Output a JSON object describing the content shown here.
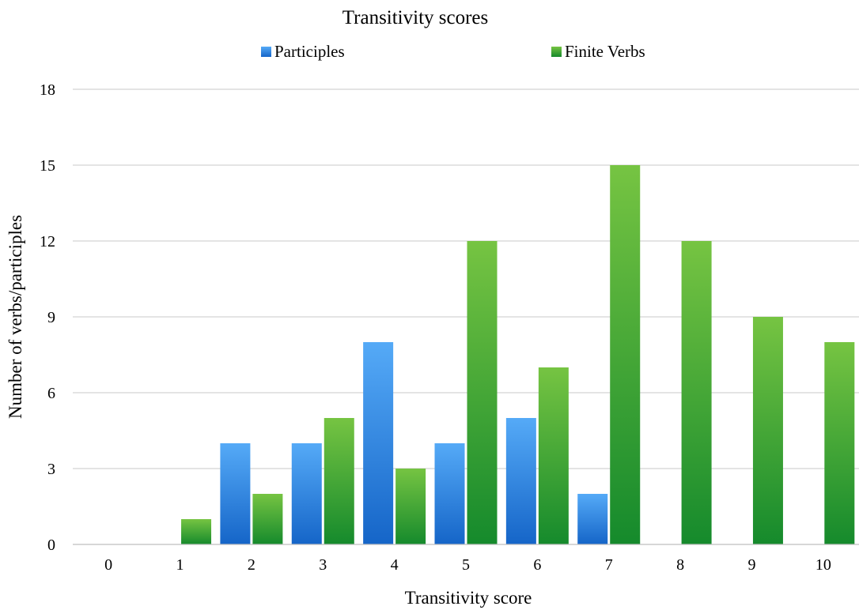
{
  "chart_data": {
    "type": "bar",
    "title": "Transitivity scores",
    "xlabel": "Transitivity score",
    "ylabel": "Number of verbs/participles",
    "categories": [
      "0",
      "1",
      "2",
      "3",
      "4",
      "5",
      "6",
      "7",
      "8",
      "9",
      "10"
    ],
    "ylim": [
      0,
      18
    ],
    "yticks": [
      "0",
      "3",
      "6",
      "9",
      "12",
      "15",
      "18"
    ],
    "grid": true,
    "legend_position": "top",
    "series": [
      {
        "name": "Participles",
        "values": [
          0,
          0,
          4,
          4,
          8,
          4,
          5,
          2,
          0,
          0,
          0
        ],
        "color": "#2f87e8",
        "color_top": "#55aaf7",
        "color_bottom": "#1565c8"
      },
      {
        "name": "Finite Verbs",
        "values": [
          0,
          1,
          2,
          5,
          3,
          12,
          7,
          15,
          12,
          9,
          8
        ],
        "color": "#3aa43a",
        "color_top": "#76c442",
        "color_bottom": "#158a2c"
      }
    ]
  }
}
